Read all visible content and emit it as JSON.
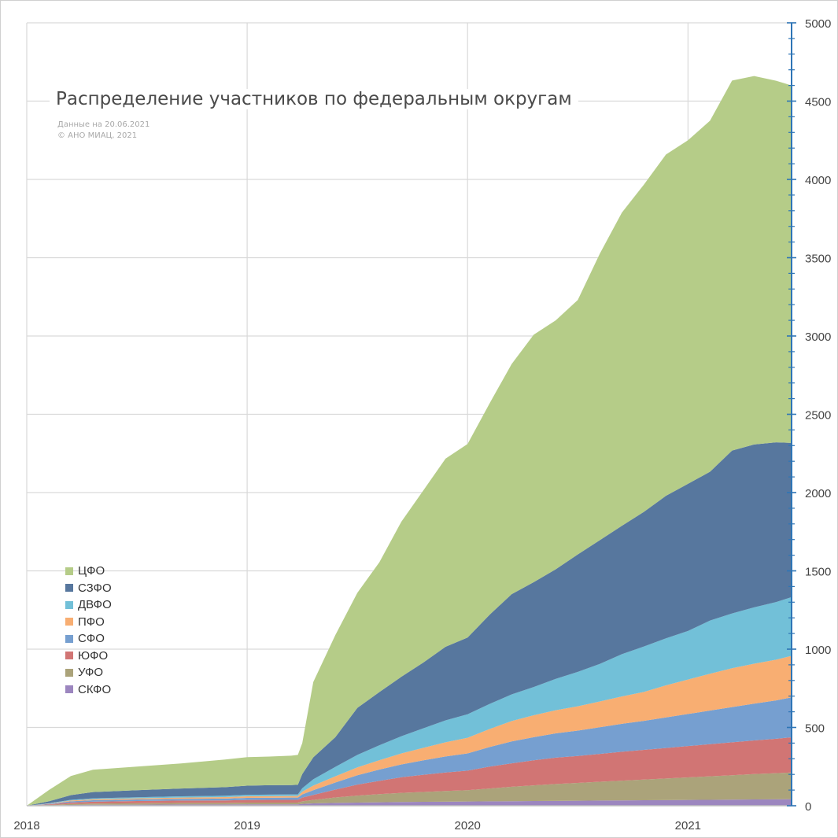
{
  "title": "Распределение участников по федеральным округам",
  "note_date": "Данные на 20.06.2021",
  "note_copyright": "© АНО МИАЦ, 2021",
  "legend": [
    {
      "name": "ЦФО",
      "color": "#b5cc88"
    },
    {
      "name": "СЗФО",
      "color": "#57779e"
    },
    {
      "name": "ДВФО",
      "color": "#72c0d8"
    },
    {
      "name": "ПФО",
      "color": "#f8ae72"
    },
    {
      "name": "СФО",
      "color": "#769fd0"
    },
    {
      "name": "ЮФО",
      "color": "#d17574"
    },
    {
      "name": "УФО",
      "color": "#aba37a"
    },
    {
      "name": "СКФО",
      "color": "#9c86bf"
    }
  ],
  "chart_data": {
    "type": "area",
    "stacked": true,
    "x_axis": {
      "ticks": [
        "2018",
        "2019",
        "2020",
        "2021"
      ],
      "range": [
        2018.0,
        2021.47
      ]
    },
    "y_axis": {
      "position": "right",
      "range": [
        0,
        5000
      ],
      "ticks": [
        0,
        500,
        1000,
        1500,
        2000,
        2500,
        3000,
        3500,
        4000,
        4500,
        5000
      ]
    },
    "grid": true,
    "legend_position": "bottom-left",
    "x": [
      2018.0,
      2018.1,
      2018.2,
      2018.3,
      2018.5,
      2018.7,
      2018.9,
      2019.0,
      2019.1,
      2019.2,
      2019.23,
      2019.25,
      2019.3,
      2019.4,
      2019.5,
      2019.6,
      2019.7,
      2019.8,
      2019.9,
      2020.0,
      2020.1,
      2020.2,
      2020.3,
      2020.4,
      2020.5,
      2020.6,
      2020.7,
      2020.8,
      2020.9,
      2021.0,
      2021.1,
      2021.2,
      2021.3,
      2021.4,
      2021.47
    ],
    "series": [
      {
        "name": "СКФО",
        "values": [
          0,
          2,
          5,
          6,
          7,
          8,
          8,
          9,
          9,
          9,
          9,
          12,
          15,
          18,
          20,
          22,
          24,
          25,
          26,
          27,
          28,
          29,
          30,
          31,
          32,
          33,
          34,
          35,
          36,
          37,
          38,
          39,
          40,
          41,
          42
        ]
      },
      {
        "name": "УФО",
        "values": [
          0,
          3,
          6,
          8,
          9,
          10,
          10,
          11,
          11,
          11,
          11,
          16,
          22,
          35,
          45,
          52,
          58,
          63,
          68,
          72,
          82,
          92,
          100,
          108,
          114,
          120,
          126,
          132,
          138,
          144,
          150,
          156,
          162,
          167,
          170
        ]
      },
      {
        "name": "ЮФО",
        "values": [
          0,
          4,
          10,
          12,
          14,
          15,
          16,
          17,
          18,
          18,
          18,
          24,
          32,
          50,
          70,
          85,
          100,
          110,
          118,
          125,
          140,
          150,
          160,
          168,
          172,
          178,
          185,
          190,
          195,
          200,
          205,
          210,
          215,
          220,
          225
        ]
      },
      {
        "name": "СФО",
        "values": [
          0,
          3,
          7,
          9,
          10,
          11,
          12,
          13,
          13,
          14,
          14,
          20,
          30,
          45,
          60,
          72,
          82,
          92,
          103,
          110,
          125,
          140,
          148,
          155,
          162,
          170,
          178,
          185,
          195,
          205,
          215,
          225,
          235,
          245,
          255
        ]
      },
      {
        "name": "ПФО",
        "values": [
          0,
          2,
          5,
          6,
          7,
          8,
          9,
          10,
          10,
          10,
          10,
          18,
          30,
          40,
          50,
          60,
          70,
          80,
          90,
          100,
          115,
          130,
          140,
          148,
          155,
          165,
          175,
          185,
          205,
          220,
          235,
          248,
          255,
          260,
          265
        ]
      },
      {
        "name": "ДВФО",
        "values": [
          0,
          2,
          5,
          6,
          7,
          8,
          9,
          10,
          10,
          10,
          10,
          22,
          40,
          60,
          80,
          95,
          110,
          125,
          140,
          150,
          160,
          170,
          180,
          200,
          220,
          240,
          270,
          290,
          300,
          310,
          340,
          350,
          360,
          368,
          375
        ]
      },
      {
        "name": "СЗФО",
        "values": [
          0,
          12,
          30,
          40,
          45,
          50,
          55,
          58,
          60,
          60,
          62,
          90,
          140,
          190,
          300,
          340,
          380,
          420,
          470,
          490,
          570,
          640,
          670,
          700,
          750,
          790,
          820,
          860,
          910,
          940,
          950,
          1040,
          1040,
          1020,
          985
        ]
      },
      {
        "name": "ЦФО",
        "values": [
          0,
          72,
          122,
          143,
          151,
          160,
          176,
          182,
          183,
          188,
          191,
          198,
          481,
          652,
          735,
          829,
          991,
          1100,
          1202,
          1236,
          1350,
          1470,
          1580,
          1590,
          1625,
          1830,
          2000,
          2090,
          2180,
          2194,
          2242,
          2363,
          2353,
          2309,
          2283
        ]
      }
    ]
  }
}
